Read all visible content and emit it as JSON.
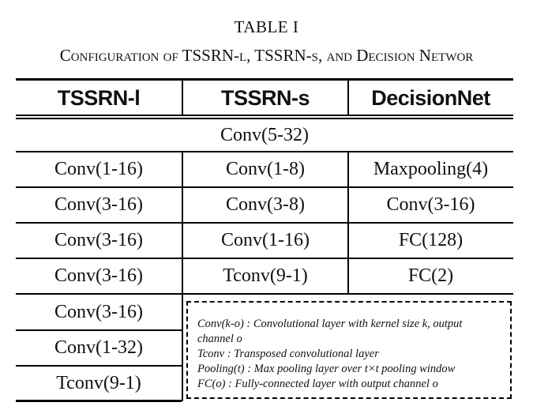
{
  "table_label": "TABLE I",
  "table_caption": "Configuration of TSSRN-l, TSSRN-s, and Decision Networ",
  "headers": [
    "TSSRN-l",
    "TSSRN-s",
    "DecisionNet"
  ],
  "shared_row": "Conv(5-32)",
  "rows": [
    [
      "Conv(1-16)",
      "Conv(1-8)",
      "Maxpooling(4)"
    ],
    [
      "Conv(3-16)",
      "Conv(3-8)",
      "Conv(3-16)"
    ],
    [
      "Conv(3-16)",
      "Conv(1-16)",
      "FC(128)"
    ],
    [
      "Conv(3-16)",
      "Tconv(9-1)",
      "FC(2)"
    ]
  ],
  "tssrn_l_extra": [
    "Conv(3-16)",
    "Conv(1-32)",
    "Tconv(9-1)"
  ],
  "legend": [
    "Conv(k-o) : Convolutional layer with kernel size k, output",
    "channel o",
    "Tconv : Transposed convolutional layer",
    "Pooling(t) : Max pooling layer over t×t pooling window",
    "FC(o) : Fully-connected layer with output channel o"
  ]
}
